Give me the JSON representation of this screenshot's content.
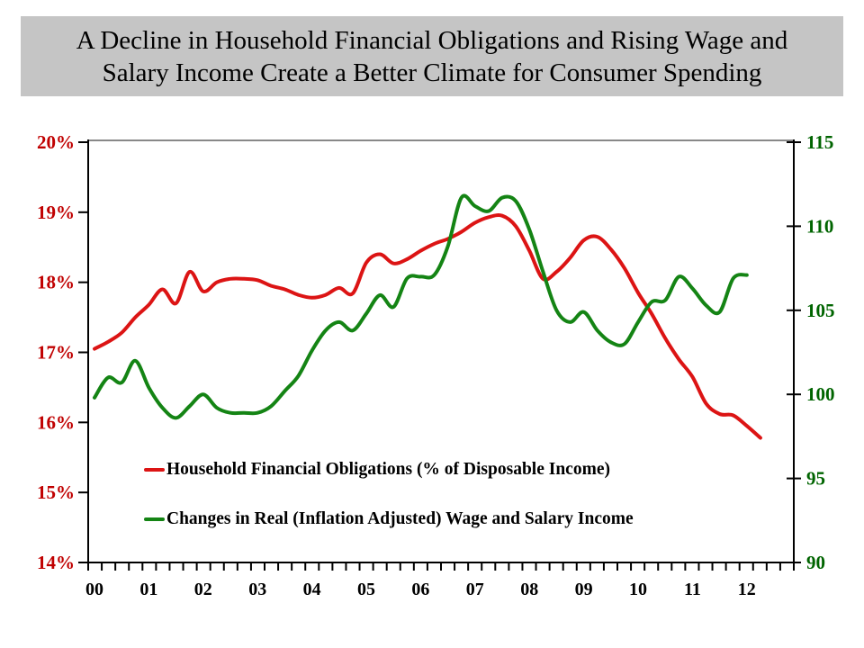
{
  "title": {
    "line1": "A Decline in Household Financial Obligations and Rising Wage and",
    "line2": "Salary Income Create a Better Climate for Consumer Spending"
  },
  "colors": {
    "banner_bg": "#C5C5C5",
    "red_line": "#DC1414",
    "green_line": "#148414",
    "left_axis_label": "#C00000",
    "right_axis_label": "#006400",
    "axis_line": "#000000",
    "plot_top_border": "#888888"
  },
  "chart_data": {
    "type": "line",
    "x_axis": {
      "labels": [
        "00",
        "01",
        "02",
        "03",
        "04",
        "05",
        "06",
        "07",
        "08",
        "09",
        "10",
        "11",
        "12"
      ],
      "minor_tick_interval": "quarterly"
    },
    "left_axis": {
      "labels": [
        "20%",
        "19%",
        "18%",
        "17%",
        "16%",
        "15%",
        "14%"
      ],
      "values": [
        20,
        19,
        18,
        17,
        16,
        15,
        14
      ],
      "min": 14,
      "max": 20,
      "color": "#C00000"
    },
    "right_axis": {
      "labels": [
        "115",
        "110",
        "105",
        "100",
        "95",
        "90"
      ],
      "values": [
        115,
        110,
        105,
        100,
        95,
        90
      ],
      "min": 90,
      "max": 115,
      "color": "#006400"
    },
    "series": [
      {
        "name": "Household Financial Obligations (% of Disposable Income)",
        "color": "#DC1414",
        "axis": "left",
        "x0": 0,
        "dx": 0.25,
        "values": [
          17.05,
          17.15,
          17.28,
          17.5,
          17.68,
          17.9,
          17.7,
          18.15,
          17.87,
          18.0,
          18.05,
          18.05,
          18.03,
          17.95,
          17.9,
          17.82,
          17.78,
          17.82,
          17.92,
          17.84,
          18.28,
          18.4,
          18.27,
          18.33,
          18.45,
          18.55,
          18.62,
          18.72,
          18.85,
          18.93,
          18.95,
          18.8,
          18.45,
          18.05,
          18.15,
          18.35,
          18.6,
          18.65,
          18.47,
          18.2,
          17.85,
          17.55,
          17.2,
          16.9,
          16.65,
          16.27,
          16.12,
          16.1,
          15.95,
          15.78
        ]
      },
      {
        "name": "Changes in Real (Inflation Adjusted) Wage and Salary Income",
        "color": "#148414",
        "axis": "right",
        "x0": 0,
        "dx": 0.25,
        "values": [
          99.8,
          101.0,
          100.7,
          102.0,
          100.4,
          99.2,
          98.6,
          99.3,
          100.0,
          99.2,
          98.9,
          98.9,
          98.9,
          99.3,
          100.2,
          101.1,
          102.6,
          103.8,
          104.3,
          103.8,
          104.8,
          105.9,
          105.2,
          106.9,
          107.0,
          107.1,
          108.8,
          111.7,
          111.2,
          110.9,
          111.7,
          111.5,
          109.8,
          107.3,
          105.0,
          104.3,
          104.9,
          103.8,
          103.1,
          103.0,
          104.3,
          105.5,
          105.6,
          107.0,
          106.3,
          105.3,
          104.9,
          106.9,
          107.1
        ]
      }
    ],
    "legend_position": "inside-lower-left"
  }
}
